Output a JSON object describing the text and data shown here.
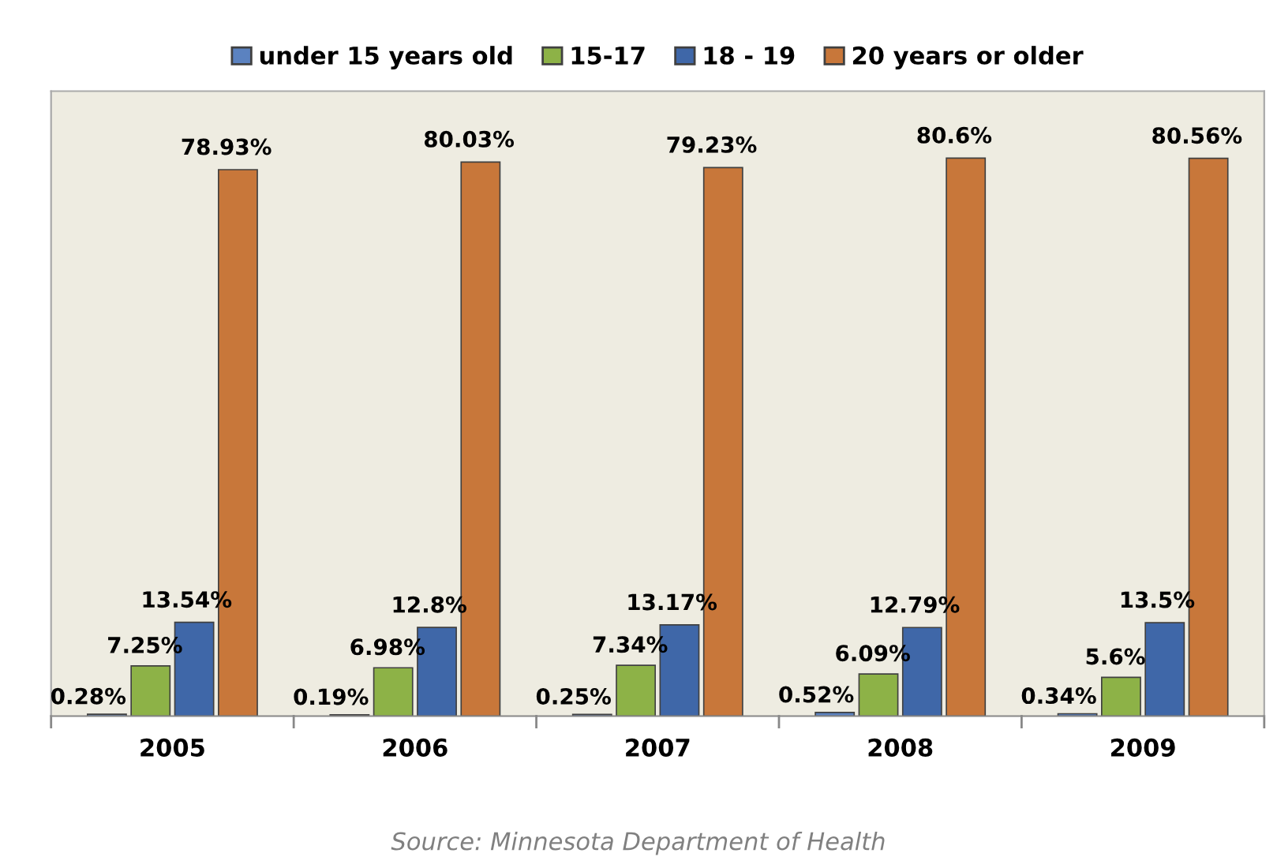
{
  "chart_data": {
    "type": "bar",
    "categories": [
      "2005",
      "2006",
      "2007",
      "2008",
      "2009"
    ],
    "series": [
      {
        "name": "under 15 years old",
        "color": "#5b82c0",
        "values": [
          0.28,
          0.19,
          0.25,
          0.52,
          0.34
        ],
        "value_labels": [
          "0.28%",
          "0.19%",
          "0.25%",
          "0.52%",
          "0.34%"
        ]
      },
      {
        "name": "15-17",
        "color": "#8db247",
        "values": [
          7.25,
          6.98,
          7.34,
          6.09,
          5.6
        ],
        "value_labels": [
          "7.25%",
          "6.98%",
          "7.34%",
          "6.09%",
          "5.6%"
        ]
      },
      {
        "name": "18 - 19",
        "color": "#3f67a8",
        "values": [
          13.54,
          12.8,
          13.17,
          12.79,
          13.5
        ],
        "value_labels": [
          "13.54%",
          "12.8%",
          "13.17%",
          "12.79%",
          "13.5%"
        ]
      },
      {
        "name": "20 years or older",
        "color": "#c8773a",
        "values": [
          78.93,
          80.03,
          79.23,
          80.6,
          80.56
        ],
        "value_labels": [
          "78.93%",
          "80.03%",
          "79.23%",
          "80.6%",
          "80.56%"
        ]
      }
    ],
    "legend": "top",
    "grid": false,
    "annotations": [
      "Source: Minnesota Department of Health"
    ]
  }
}
